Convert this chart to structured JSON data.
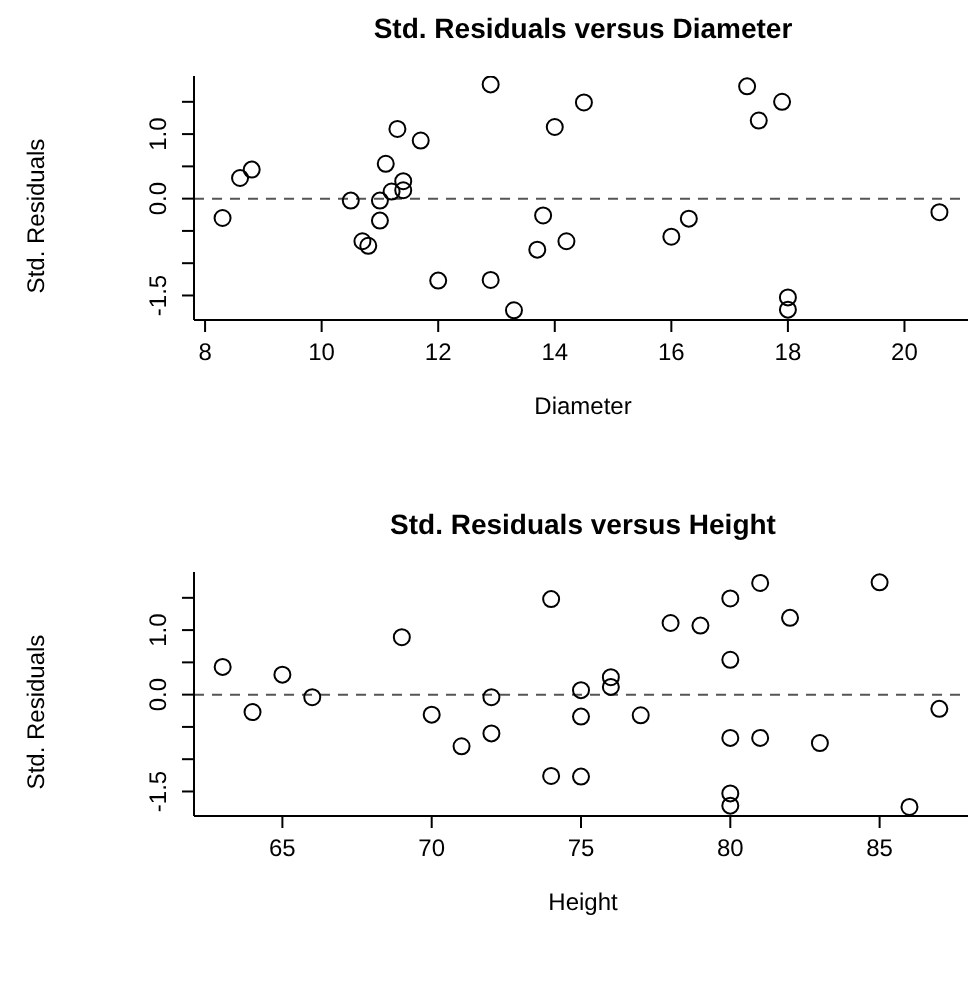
{
  "chart_data": [
    {
      "type": "scatter",
      "title": "Std. Residuals versus Diameter",
      "xlabel": "Diameter",
      "ylabel": "Std. Residuals",
      "marker": "circle",
      "grid": false,
      "legend": false,
      "x": [
        8.3,
        8.6,
        8.8,
        10.5,
        10.7,
        10.8,
        11.0,
        11.0,
        11.1,
        11.2,
        11.3,
        11.4,
        11.4,
        11.7,
        12.0,
        12.9,
        12.9,
        13.3,
        13.7,
        13.8,
        14.0,
        14.2,
        14.5,
        16.0,
        16.3,
        17.3,
        17.5,
        17.9,
        18.0,
        18.0,
        20.6
      ],
      "series": [
        {
          "color": "#000000",
          "values": [
            -0.3,
            0.32,
            0.45,
            -0.03,
            -0.66,
            -0.73,
            -0.03,
            -0.34,
            0.54,
            0.11,
            1.08,
            0.27,
            0.13,
            0.9,
            -1.27,
            1.77,
            -1.26,
            -1.73,
            -0.79,
            -0.26,
            1.11,
            -0.66,
            1.49,
            -0.59,
            -0.31,
            1.74,
            1.21,
            1.5,
            -1.53,
            -1.72,
            -0.21
          ]
        }
      ],
      "xlim": [
        7.81,
        21.09
      ],
      "xticks": [
        8,
        10,
        12,
        14,
        16,
        18,
        20
      ],
      "ylim": [
        -1.88,
        1.9
      ],
      "yticks": [
        {
          "value": -1.5,
          "label": "-1.5"
        },
        {
          "value": -1,
          "label": null
        },
        {
          "value": -0.5,
          "label": null
        },
        {
          "value": 0,
          "label": "0.0"
        },
        {
          "value": 0.5,
          "label": null
        },
        {
          "value": 1,
          "label": "1.0"
        },
        {
          "value": 1.5,
          "label": null
        }
      ],
      "ref_lines": [
        {
          "axis": "y",
          "value": 0,
          "label": null,
          "color": "#555555",
          "line_style": "dashed"
        }
      ]
    },
    {
      "type": "scatter",
      "title": "Std. Residuals versus Height",
      "xlabel": "Height",
      "ylabel": "Std. Residuals",
      "marker": "circle",
      "grid": false,
      "legend": false,
      "x": [
        63,
        64,
        65,
        66,
        69,
        70,
        71,
        72,
        72,
        74,
        74,
        75,
        75,
        75,
        76,
        76,
        77,
        78,
        79,
        80,
        80,
        80,
        80,
        80,
        81,
        81,
        82,
        83,
        85,
        86,
        87
      ],
      "series": [
        {
          "color": "#000000",
          "values": [
            0.43,
            -0.27,
            0.31,
            -0.04,
            0.89,
            -0.31,
            -0.8,
            -0.04,
            -0.6,
            1.48,
            -1.26,
            0.07,
            -0.34,
            -1.27,
            0.27,
            0.12,
            -0.32,
            1.11,
            1.07,
            1.49,
            0.54,
            -0.67,
            -1.53,
            -1.72,
            1.73,
            -0.67,
            1.19,
            -0.75,
            1.74,
            -1.74,
            -0.22
          ]
        }
      ],
      "xlim": [
        62.04,
        87.96
      ],
      "xticks": [
        65,
        70,
        75,
        80,
        85
      ],
      "ylim": [
        -1.88,
        1.9
      ],
      "yticks": [
        {
          "value": -1.5,
          "label": "-1.5"
        },
        {
          "value": -1,
          "label": null
        },
        {
          "value": -0.5,
          "label": null
        },
        {
          "value": 0,
          "label": "0.0"
        },
        {
          "value": 0.5,
          "label": null
        },
        {
          "value": 1,
          "label": "1.0"
        },
        {
          "value": 1.5,
          "label": null
        }
      ],
      "ref_lines": [
        {
          "axis": "y",
          "value": 0,
          "label": null,
          "color": "#555555",
          "line_style": "dashed"
        }
      ]
    }
  ]
}
